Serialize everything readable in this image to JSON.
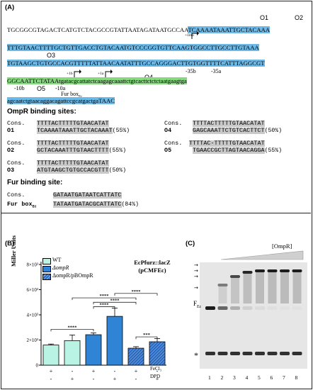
{
  "panel_a": {
    "label": "(A)",
    "lines": [
      "TGCGGCGTAGACTCATGTCTACGCCGTATTAATAGATAATGCCAA",
      "TCAAAATAAATTGCTACAAA",
      "TTTGTAACTTTTGCTGTTGACCTGTACAATGTCCCGGTGTTCAAGTGGCCTTGCCTTGTAAA",
      "TGTAAGCTGTGCCACGTTTTTATTAACAATATTTGCCAGGGACTTGTGGTTTTCATTTAGGCGT",
      "GGCAATTCTATAAtgatacgcattatctcaagagcaaattctgtcacttctctctaatgaagtga",
      "agcaatctgtaacaggacagattccgcatgactgaTAAC"
    ],
    "o_labels": [
      "O1",
      "O2",
      "O3",
      "O4",
      "O5"
    ],
    "promoter_labels": {
      "minus35b": "-35b",
      "minus35a": "-35a",
      "minus10b": "-10b",
      "minus10a": "-10a",
      "plus1b": "+1b",
      "plus1a": "+1a",
      "plus1mo": "+1mo",
      "furbox": "Fur box"
    },
    "furbox_sub": "Ec",
    "ompr_heading": "OmpR binding sites:",
    "fur_heading": "Fur binding site:",
    "cons_label": "Cons.",
    "cons_seq": "TTTTACTTTTTGTAACATAT",
    "sites": [
      {
        "name": "O1",
        "seq": "TCAAAATAAATTGCTACAAAT",
        "pct": "(55%)"
      },
      {
        "name": "O2",
        "seq": "GCTACAAATTTGTAACTTTT",
        "pct": "(55%)"
      },
      {
        "name": "O3",
        "seq": "ATGTAAGCTGTGCCACGTTT",
        "pct": "(50%)"
      },
      {
        "name": "O4",
        "seq": "GAGCAAATTCTGTCACTTCT",
        "pct": "(50%)"
      },
      {
        "name": "O5",
        "seq": "TGAACCGCTTAGTAACAGGA",
        "pct": "(55%)"
      }
    ],
    "cons_o5": "TTTTAC-TTTTTGTAACATAT",
    "fur_cons": "GATAATGATAATCATTATC",
    "fur_box_name": "Fur box",
    "fur_box_seq": "TATAATGATACGCATTATC",
    "fur_box_pct": "(84%)"
  },
  "panel_b": {
    "label": "(B)",
    "construct": "EcPfurz::lacZ",
    "plasmid": "(pCMFEc)",
    "legend": [
      "WT",
      "ΔompR",
      "ΔompR/pBOmpR"
    ],
    "y_label": "Miller Units",
    "x_row_labels": [
      "FeCl₃",
      "DPD"
    ],
    "signs_fecl3": [
      "+",
      "-",
      "+",
      "-",
      "+",
      "-"
    ],
    "signs_dpd": [
      "-",
      "+",
      "-",
      "+",
      "-",
      "+"
    ],
    "sig": [
      "****",
      "****",
      "****",
      "****",
      "****",
      "***"
    ]
  },
  "chart_data": {
    "type": "bar",
    "categories": [
      "WT FeCl3",
      "WT DPD",
      "ΔompR FeCl3",
      "ΔompR DPD",
      "ΔompR/pBOmpR FeCl3",
      "ΔompR/pBOmpR DPD"
    ],
    "values": [
      1600,
      1950,
      2420,
      3880,
      1350,
      1860
    ],
    "errors": [
      80,
      450,
      150,
      650,
      120,
      250
    ],
    "colors": [
      "#b9f3e4",
      "#b9f3e4",
      "#2f84d6",
      "#2f84d6",
      "#2b6ac1",
      "#2b6ac1"
    ],
    "ylim": [
      0,
      8000
    ],
    "yticks": [
      "0",
      "2×10³",
      "4×10³",
      "6×10³",
      "8×10³"
    ],
    "ylabel": "Miller Units"
  },
  "panel_c": {
    "label": "(C)",
    "protein": "[OmpR]",
    "free_label": "F",
    "free_sub": "Ec",
    "star": "*",
    "lanes": [
      "1",
      "2",
      "3",
      "4",
      "5",
      "6",
      "7",
      "8"
    ]
  }
}
